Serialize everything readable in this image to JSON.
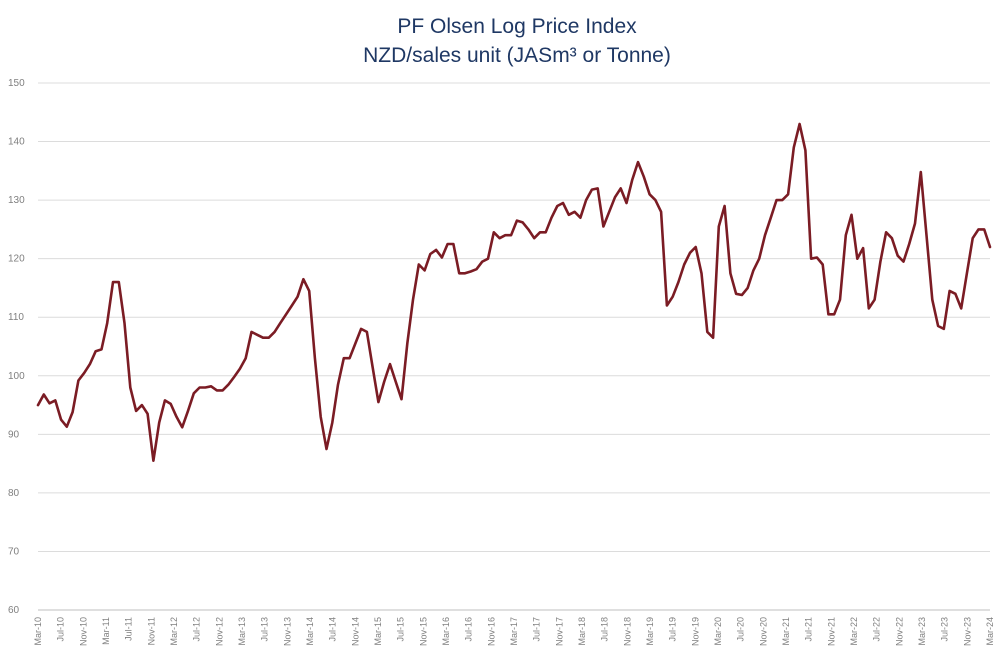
{
  "chart_data": {
    "type": "line",
    "title": "PF Olsen Log Price Index",
    "subtitle": "NZD/sales unit (JASm³ or Tonne)",
    "ylim": [
      60,
      150
    ],
    "yticks": [
      60,
      70,
      80,
      90,
      100,
      110,
      120,
      130,
      140,
      150
    ],
    "grid": true,
    "line_color": "#7b1c24",
    "xticks": [
      "Mar-10",
      "Jul-10",
      "Nov-10",
      "Mar-11",
      "Jul-11",
      "Nov-11",
      "Mar-12",
      "Jul-12",
      "Nov-12",
      "Mar-13",
      "Jul-13",
      "Nov-13",
      "Mar-14",
      "Jul-14",
      "Nov-14",
      "Mar-15",
      "Jul-15",
      "Nov-15",
      "Mar-16",
      "Jul-16",
      "Nov-16",
      "Mar-17",
      "Jul-17",
      "Nov-17",
      "Mar-18",
      "Jul-18",
      "Nov-18",
      "Mar-19",
      "Jul-19",
      "Nov-19",
      "Mar-20",
      "Jul-20",
      "Nov-20",
      "Mar-21",
      "Jul-21",
      "Nov-21",
      "Mar-22",
      "Jul-22",
      "Nov-22",
      "Mar-23",
      "Jul-23",
      "Nov-23",
      "Mar-24"
    ],
    "series": [
      {
        "values": [
          95.0,
          96.8,
          95.3,
          95.8,
          92.5,
          91.3,
          93.8,
          99.2,
          100.5,
          102.0,
          104.2,
          104.5,
          109.0,
          116.0,
          116.0,
          109.0,
          98.0,
          94.0,
          95.0,
          93.5,
          85.5,
          92.0,
          95.8,
          95.2,
          93.0,
          91.2,
          94.0,
          97.0,
          98.0,
          98.0,
          98.2,
          97.5,
          97.5,
          98.5,
          99.8,
          101.2,
          103.0,
          107.5,
          107.0,
          106.5,
          106.5,
          107.5,
          109.0,
          110.5,
          112.0,
          113.5,
          116.5,
          114.5,
          103.0,
          93.0,
          87.5,
          92.0,
          98.5,
          103.0,
          103.0,
          105.5,
          108.0,
          107.5,
          101.5,
          95.5,
          99.0,
          102.0,
          99.0,
          96.0,
          105.5,
          113.0,
          119.0,
          118.0,
          120.8,
          121.5,
          120.2,
          122.5,
          122.5,
          117.5,
          117.5,
          117.8,
          118.2,
          119.5,
          120.0,
          124.5,
          123.5,
          124.0,
          124.0,
          126.5,
          126.2,
          125.0,
          123.5,
          124.5,
          124.5,
          127.0,
          129.0,
          129.5,
          127.5,
          128.0,
          127.0,
          130.0,
          131.8,
          132.0,
          125.5,
          128.0,
          130.5,
          132.0,
          129.5,
          133.5,
          136.5,
          134.0,
          131.0,
          130.0,
          128.0,
          112.0,
          113.5,
          116.0,
          119.0,
          121.0,
          122.0,
          117.5,
          107.5,
          106.5,
          125.5,
          129.0,
          117.5,
          114.0,
          113.8,
          115.0,
          118.0,
          120.0,
          124.0,
          127.0,
          130.0,
          130.0,
          131.0,
          139.0,
          143.0,
          138.5,
          120.0,
          120.2,
          119.0,
          110.5,
          110.5,
          113.0,
          124.0,
          127.5,
          120.0,
          121.8,
          111.5,
          113.0,
          119.5,
          124.5,
          123.5,
          120.5,
          119.5,
          122.5,
          126.0,
          134.8,
          124.0,
          113.0,
          108.5,
          108.0,
          114.5,
          114.0,
          111.5,
          117.5,
          123.5,
          125.0,
          125.0,
          122.0
        ]
      }
    ]
  }
}
